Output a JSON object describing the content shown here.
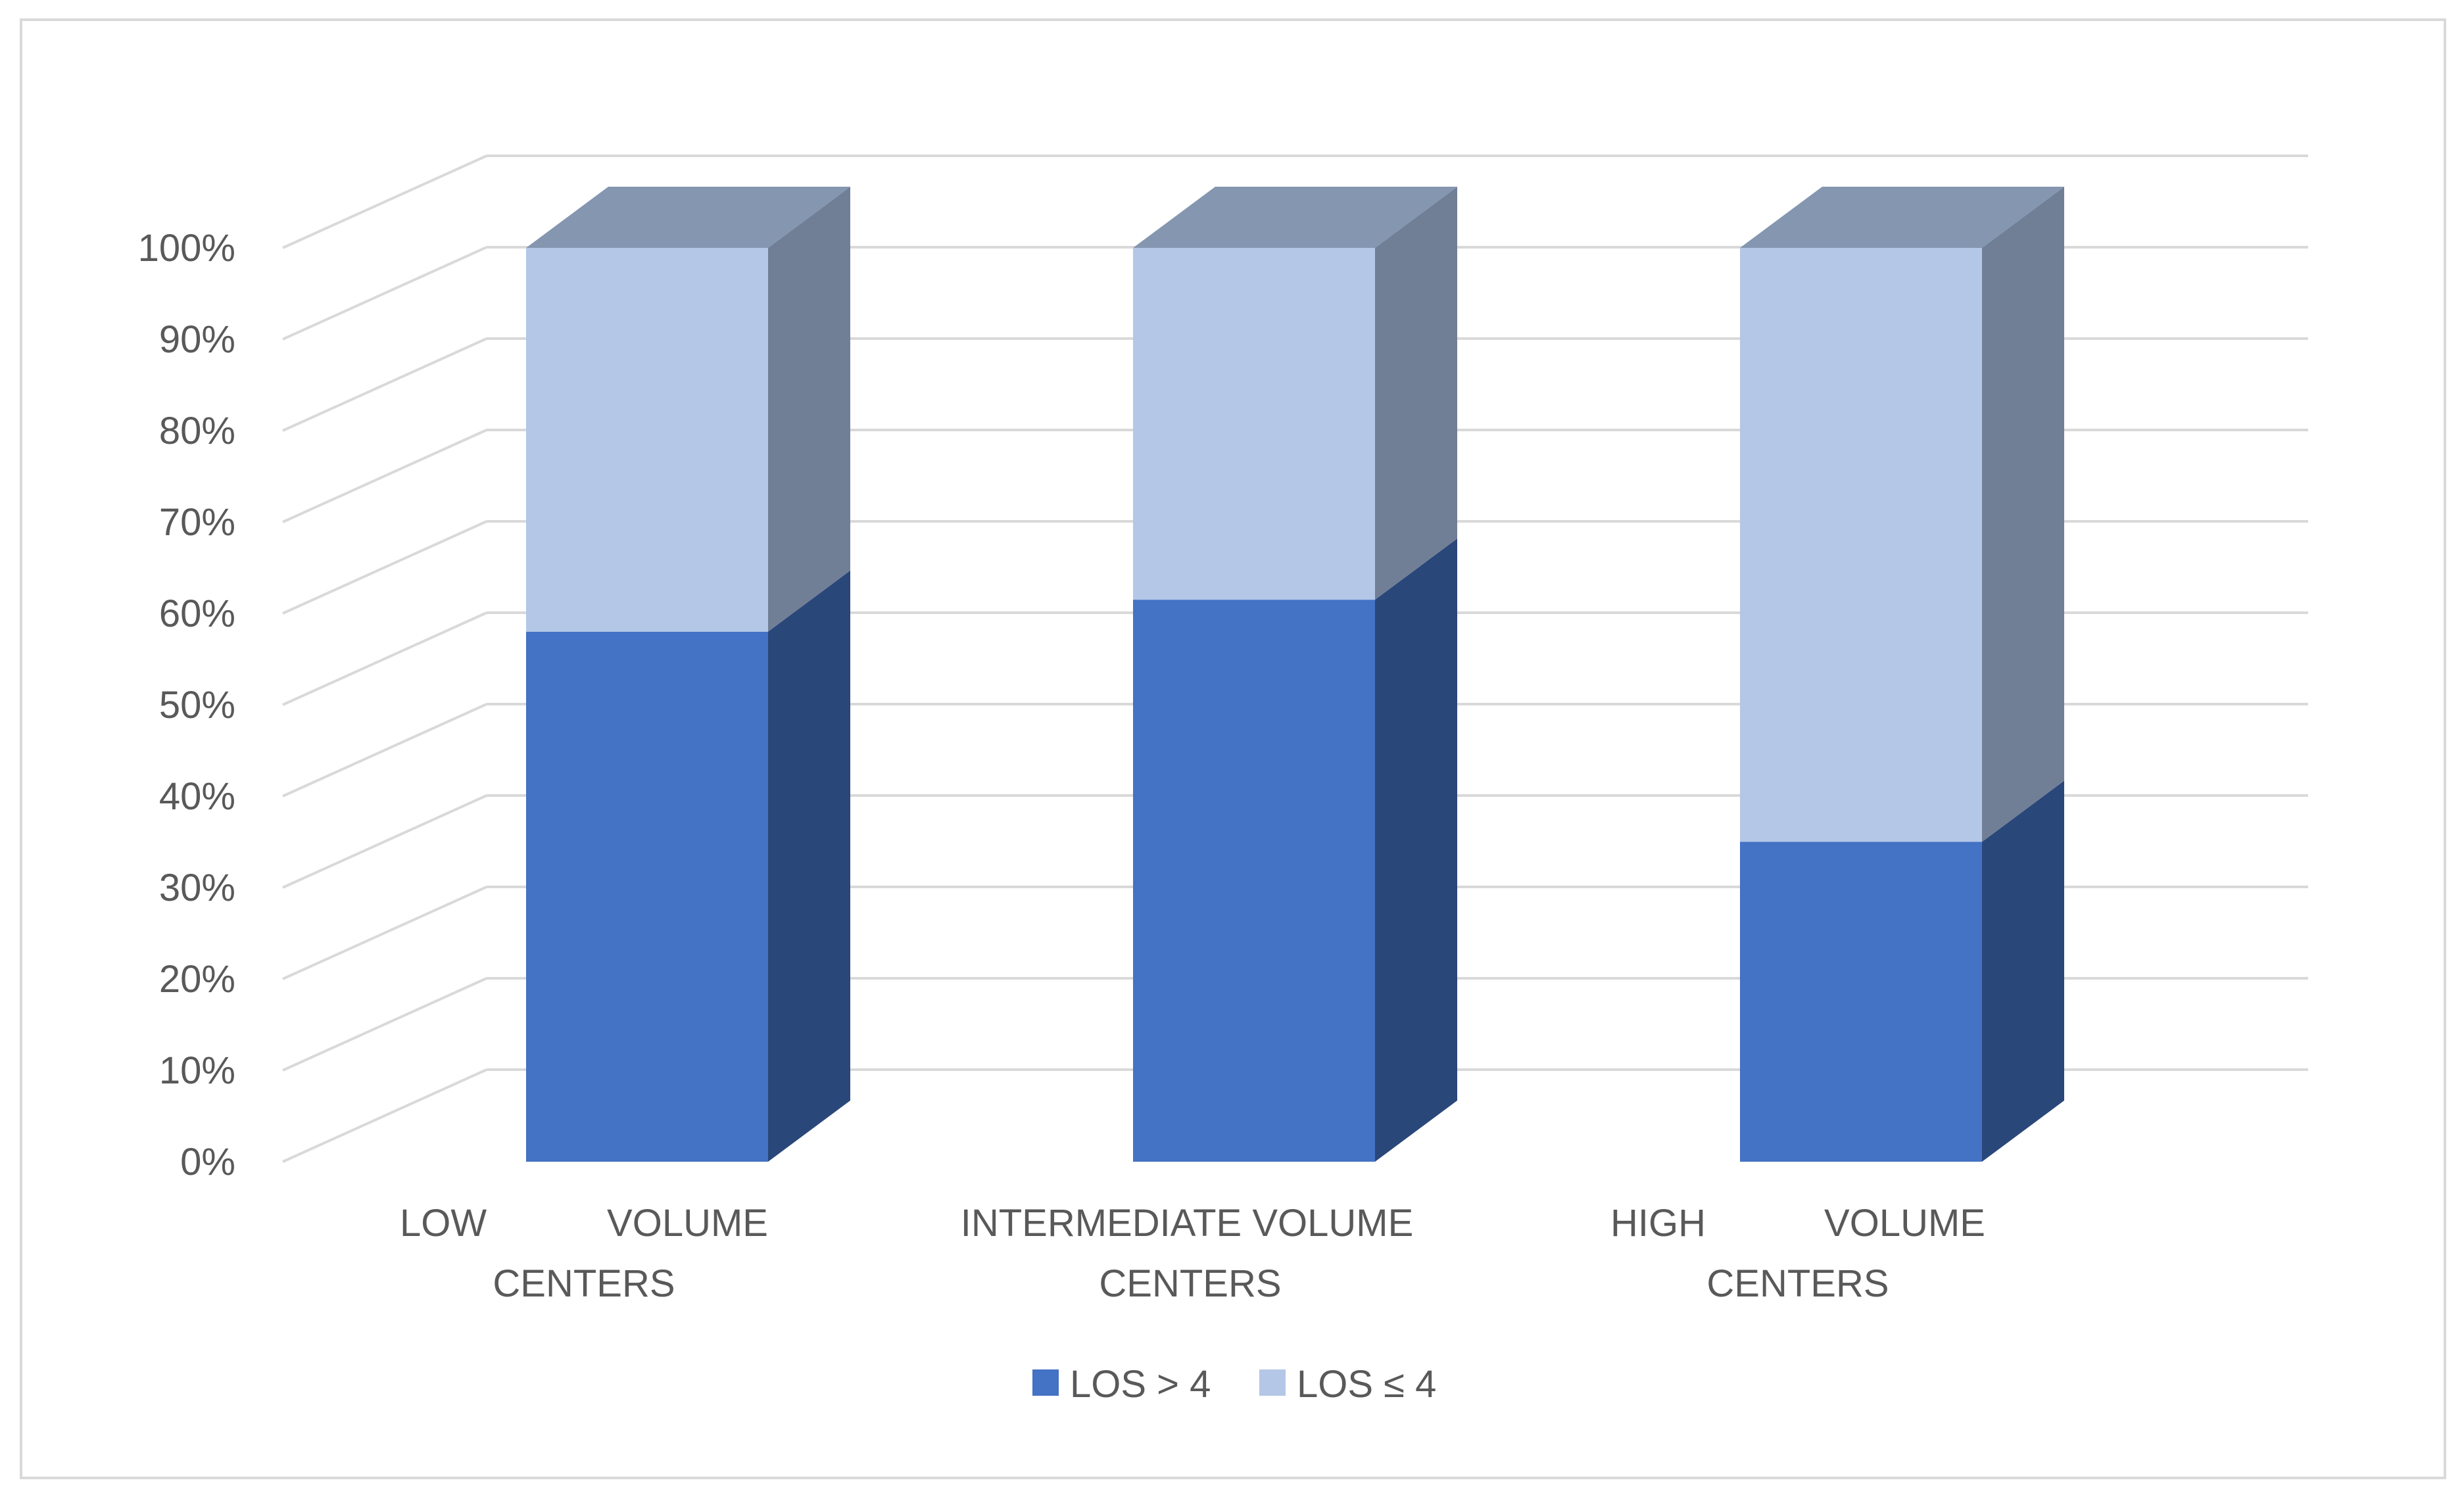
{
  "chart_data": {
    "type": "bar",
    "stacked": true,
    "percent_stacked": true,
    "three_d": true,
    "title": "",
    "xlabel": "",
    "ylabel": "",
    "categories": [
      [
        "LOW",
        "VOLUME",
        "CENTERS"
      ],
      [
        "INTERMEDIATE VOLUME",
        "CENTERS"
      ],
      [
        "HIGH",
        "VOLUME",
        "CENTERS"
      ]
    ],
    "series": [
      {
        "name": "LOS > 4",
        "values": [
          58,
          61.5,
          35
        ],
        "color": "#4472c4"
      },
      {
        "name": "LOS ≤ 4",
        "values": [
          42,
          38.5,
          65
        ],
        "color": "#b4c7e7"
      }
    ],
    "ylim": [
      0,
      100
    ],
    "yticks": [
      "0%",
      "10%",
      "20%",
      "30%",
      "40%",
      "50%",
      "60%",
      "70%",
      "80%",
      "90%",
      "100%"
    ],
    "grid": true,
    "legend_position": "bottom"
  }
}
